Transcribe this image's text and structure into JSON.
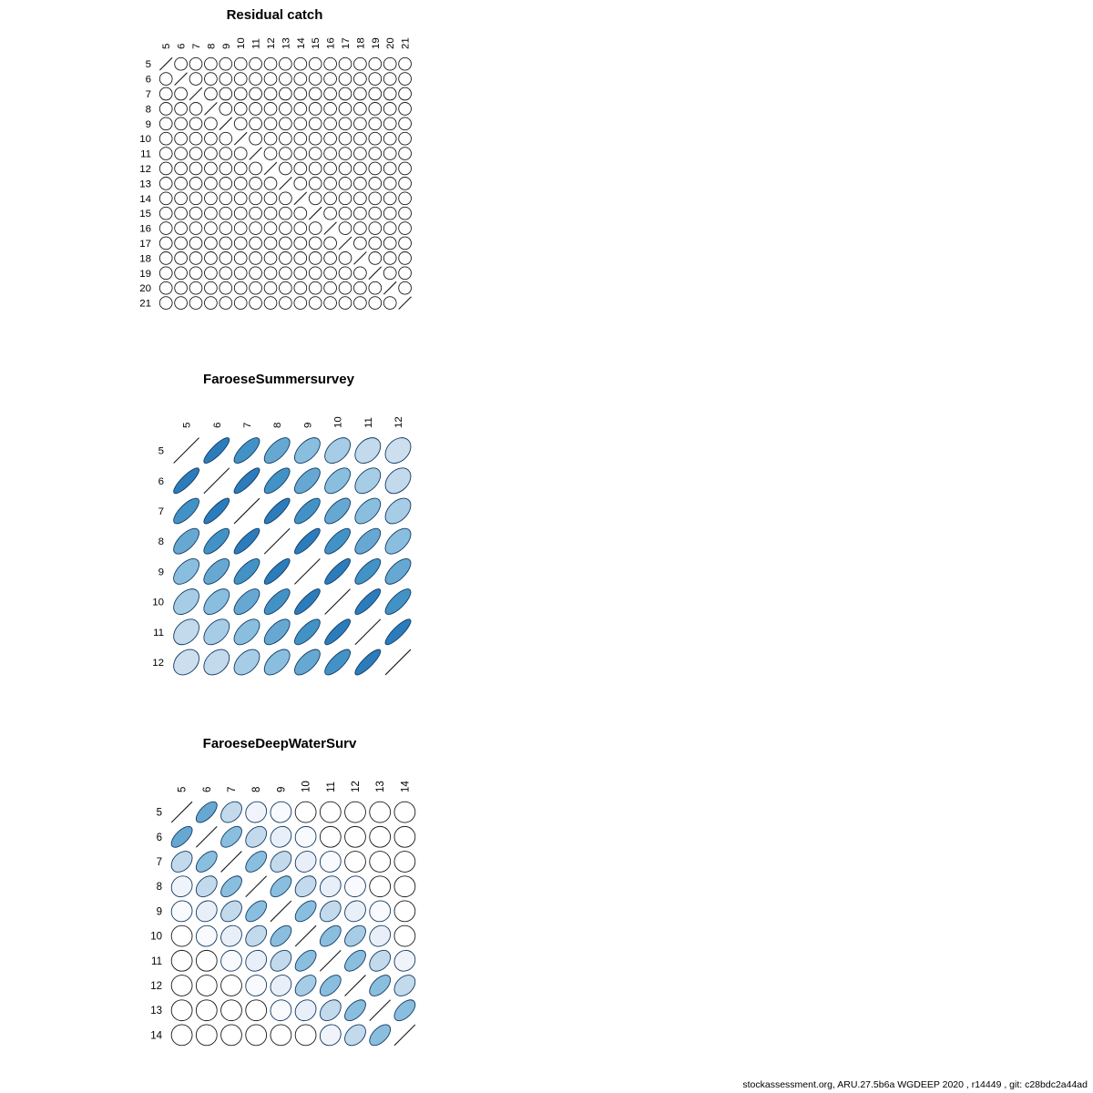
{
  "meta": {
    "footer": "stockassessment.org, ARU.27.5b6a WGDEEP 2020 , r14449 , git: c28bdc2a44ad"
  },
  "style": {
    "background": "#ffffff",
    "circle_stroke": "#1a1a1a",
    "ellipse_stroke": "#123a63",
    "diagonal_line_color": "#1a1a1a",
    "label_color": "#000000",
    "color_stops": [
      [
        0.0,
        "#ffffff"
      ],
      [
        0.15,
        "#e9eff8"
      ],
      [
        0.35,
        "#c3d9ec"
      ],
      [
        0.55,
        "#8abede"
      ],
      [
        0.75,
        "#4292c6"
      ],
      [
        0.9,
        "#2171b5"
      ],
      [
        1.0,
        "#0b4e8f"
      ]
    ]
  },
  "chart_data": [
    {
      "type": "heatmap",
      "subtype": "correlation-ellipse-matrix",
      "title": "Residual catch",
      "xlabel": "",
      "ylabel": "",
      "tick_labels": [
        "5",
        "6",
        "7",
        "8",
        "9",
        "10",
        "11",
        "12",
        "13",
        "14",
        "15",
        "16",
        "17",
        "18",
        "19",
        "20",
        "21"
      ],
      "ages": [
        5,
        6,
        7,
        8,
        9,
        10,
        11,
        12,
        13,
        14,
        15,
        16,
        17,
        18,
        19,
        20,
        21
      ],
      "diagonal_value": 1,
      "off_diagonal_value": 0,
      "matrix": null,
      "note": "All off-diagonal correlations drawn as open circles (r ~ 0); diagonal drawn as slash lines (r = 1)"
    },
    {
      "type": "heatmap",
      "subtype": "correlation-ellipse-matrix",
      "title": "FaroeseSummersurvey",
      "xlabel": "",
      "ylabel": "",
      "tick_labels": [
        "5",
        "6",
        "7",
        "8",
        "9",
        "10",
        "11",
        "12"
      ],
      "ages": [
        5,
        6,
        7,
        8,
        9,
        10,
        11,
        12
      ],
      "matrix": [
        [
          1.0,
          0.85,
          0.75,
          0.65,
          0.55,
          0.45,
          0.35,
          0.3
        ],
        [
          0.85,
          1.0,
          0.85,
          0.75,
          0.65,
          0.55,
          0.45,
          0.35
        ],
        [
          0.75,
          0.85,
          1.0,
          0.85,
          0.75,
          0.65,
          0.55,
          0.45
        ],
        [
          0.65,
          0.75,
          0.85,
          1.0,
          0.85,
          0.75,
          0.65,
          0.55
        ],
        [
          0.55,
          0.65,
          0.75,
          0.85,
          1.0,
          0.85,
          0.75,
          0.65
        ],
        [
          0.45,
          0.55,
          0.65,
          0.75,
          0.85,
          1.0,
          0.85,
          0.75
        ],
        [
          0.35,
          0.45,
          0.55,
          0.65,
          0.75,
          0.85,
          1.0,
          0.85
        ],
        [
          0.3,
          0.35,
          0.45,
          0.55,
          0.65,
          0.75,
          0.85,
          1.0
        ]
      ]
    },
    {
      "type": "heatmap",
      "subtype": "correlation-ellipse-matrix",
      "title": "FaroeseDeepWaterSurv",
      "xlabel": "",
      "ylabel": "",
      "tick_labels": [
        "5",
        "6",
        "7",
        "8",
        "9",
        "10",
        "11",
        "12",
        "13",
        "14"
      ],
      "ages": [
        5,
        6,
        7,
        8,
        9,
        10,
        11,
        12,
        13,
        14
      ],
      "matrix": [
        [
          1.0,
          0.65,
          0.35,
          0.1,
          0.05,
          0.0,
          0.0,
          0.0,
          0.0,
          0.0
        ],
        [
          0.65,
          1.0,
          0.55,
          0.35,
          0.15,
          0.05,
          0.0,
          0.0,
          0.0,
          0.0
        ],
        [
          0.35,
          0.55,
          1.0,
          0.55,
          0.35,
          0.15,
          0.05,
          0.0,
          0.0,
          0.0
        ],
        [
          0.1,
          0.35,
          0.55,
          1.0,
          0.55,
          0.35,
          0.15,
          0.05,
          0.0,
          0.0
        ],
        [
          0.05,
          0.15,
          0.35,
          0.55,
          1.0,
          0.55,
          0.35,
          0.15,
          0.05,
          0.0
        ],
        [
          0.0,
          0.05,
          0.15,
          0.35,
          0.55,
          1.0,
          0.55,
          0.45,
          0.15,
          0.0
        ],
        [
          0.0,
          0.0,
          0.05,
          0.15,
          0.35,
          0.55,
          1.0,
          0.55,
          0.35,
          0.1
        ],
        [
          0.0,
          0.0,
          0.0,
          0.05,
          0.15,
          0.45,
          0.55,
          1.0,
          0.55,
          0.35
        ],
        [
          0.0,
          0.0,
          0.0,
          0.0,
          0.05,
          0.15,
          0.35,
          0.55,
          1.0,
          0.55
        ],
        [
          0.0,
          0.0,
          0.0,
          0.0,
          0.0,
          0.0,
          0.1,
          0.35,
          0.55,
          1.0
        ]
      ]
    }
  ]
}
